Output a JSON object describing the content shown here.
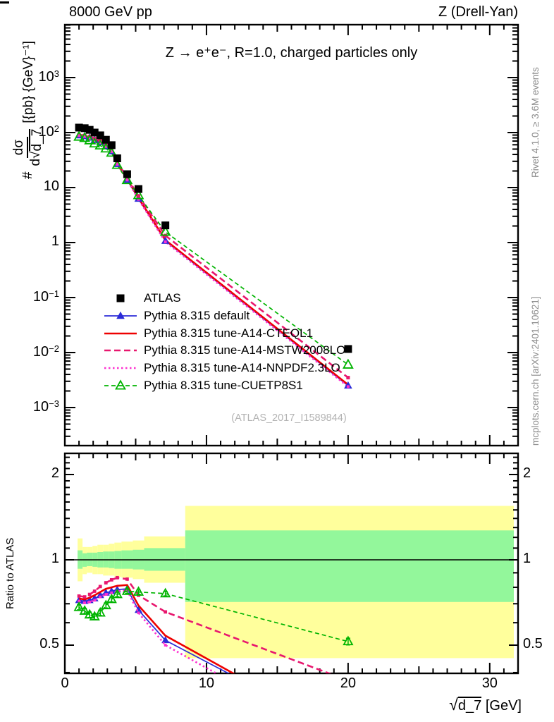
{
  "header": {
    "left": "8000 GeV pp",
    "right": "Z (Drell-Yan)"
  },
  "title": "Z → e⁺e⁻, R=1.0, charged particles only",
  "watermark": "(ATLAS_2017_I1589844)",
  "side_notes": {
    "top": "Rivet 4.1.0, ≥ 3.6M events",
    "bottom": "mcplots.cern.ch [arXiv:2401.10621]"
  },
  "axes": {
    "ratio_label": "Ratio to ATLAS",
    "x_label": {
      "sqrt": "√",
      "arg": "d_7",
      "units": " [GeV]"
    },
    "y_label": {
      "prefix": "#",
      "numerator": "dσ",
      "den_d": "d√",
      "den_arg": "d_7",
      "units": "[{pb} {GeV}⁻¹]"
    }
  },
  "chart_data": {
    "type": "line",
    "title": "Z → e⁺e⁻, R=1.0, charged particles only",
    "xlabel": "√d_7 [GeV]",
    "ylabel": "# dσ/d√d_7 [{pb} {GeV}⁻¹]",
    "ratio_ylabel": "Ratio to ATLAS",
    "xlim": [
      0,
      32
    ],
    "ylim_main": [
      0.0002,
      9000
    ],
    "ylim_ratio": [
      0.4,
      2.35
    ],
    "yscale_main": "log",
    "yscale_ratio": "log",
    "x_minor_step": 1,
    "x_ticks": [
      {
        "v": 0,
        "label": "0"
      },
      {
        "v": 10,
        "label": "10"
      },
      {
        "v": 20,
        "label": "20"
      },
      {
        "v": 30,
        "label": "30"
      }
    ],
    "y_ticks_main": [
      {
        "v": 1000,
        "base": "10",
        "exp": "3"
      },
      {
        "v": 100,
        "base": "10",
        "exp": "2"
      },
      {
        "v": 10,
        "base": "10",
        "exp": ""
      },
      {
        "v": 1,
        "base": "1",
        "exp": ""
      },
      {
        "v": 0.1,
        "base": "10",
        "exp": "−1"
      },
      {
        "v": 0.01,
        "base": "10",
        "exp": "−2"
      },
      {
        "v": 0.001,
        "base": "10",
        "exp": "−3"
      }
    ],
    "y_ticks_ratio": [
      {
        "v": 2,
        "label": "2"
      },
      {
        "v": 1,
        "label": "1"
      },
      {
        "v": 0.5,
        "label": "0.5"
      }
    ],
    "x": [
      1.0,
      1.4,
      1.75,
      2.1,
      2.5,
      2.9,
      3.3,
      3.7,
      4.4,
      5.2,
      7.1,
      20
    ],
    "series": [
      {
        "name": "ATLAS",
        "color": "#000000",
        "line": "none",
        "lw": 0,
        "dash": "",
        "marker": "square",
        "msize": 11,
        "values": [
          123,
          120,
          112,
          100,
          89,
          74,
          59,
          34,
          17.5,
          9.4,
          2.05,
          0.0116
        ],
        "ratio": null,
        "ratio_exit": null,
        "ratio_err": 0
      },
      {
        "name": "Pythia 8.315 default",
        "color": "#2b2bd8",
        "line": "solid",
        "lw": 1.7,
        "dash": "",
        "marker": "triangle",
        "msize": 10,
        "values": [
          88.6,
          85.8,
          80.6,
          73,
          66.8,
          56.6,
          45.7,
          26.7,
          13.8,
          6.25,
          1.07,
          0.0025
        ],
        "ratio": [
          0.72,
          0.715,
          0.72,
          0.73,
          0.75,
          0.765,
          0.775,
          0.785,
          0.79,
          0.665,
          0.52
        ],
        "ratio_exit": [
          12.3,
          0.38
        ],
        "ratio_err": 0
      },
      {
        "name": "Pythia 8.315 tune-A14-CTEQL1",
        "color": "#ee0000",
        "line": "solid",
        "lw": 2.6,
        "dash": "",
        "marker": "none",
        "msize": 0,
        "values": [
          89.8,
          87,
          82.3,
          75,
          68.5,
          58.5,
          47.2,
          27.5,
          14.3,
          6.49,
          1.11,
          0.0026
        ],
        "ratio": [
          0.73,
          0.725,
          0.735,
          0.75,
          0.77,
          0.79,
          0.8,
          0.81,
          0.815,
          0.69,
          0.54
        ],
        "ratio_exit": [
          12.6,
          0.38
        ],
        "ratio_err": 0
      },
      {
        "name": "Pythia 8.315 tune-A14-MSTW2008LO",
        "color": "#e8176e",
        "line": "dashed",
        "lw": 2.6,
        "dash": "9,5",
        "marker": "square",
        "msize": 5,
        "values": [
          91.6,
          88.8,
          84.6,
          77.5,
          71.6,
          61.4,
          50.2,
          29.4,
          15,
          7.05,
          1.34,
          0.0035
        ],
        "ratio": [
          0.745,
          0.74,
          0.755,
          0.775,
          0.805,
          0.83,
          0.85,
          0.865,
          0.855,
          0.75,
          0.655
        ],
        "ratio_exit": [
          19.7,
          0.38
        ],
        "ratio_err": 0
      },
      {
        "name": "Pythia 8.315 tune-A14-NNPDF2.3LO",
        "color": "#fd30d0",
        "line": "dotted",
        "lw": 2.6,
        "dash": "2.5,3.5",
        "marker": "square",
        "msize": 4,
        "values": [
          88,
          84.6,
          79.5,
          72,
          65.9,
          55.9,
          45.1,
          26.4,
          13.7,
          6.11,
          1.03,
          0.0024
        ],
        "ratio": [
          0.715,
          0.705,
          0.71,
          0.72,
          0.74,
          0.755,
          0.765,
          0.775,
          0.78,
          0.65,
          0.5
        ],
        "ratio_exit": [
          11.4,
          0.38
        ],
        "ratio_err": 0
      },
      {
        "name": "Pythia 8.315 tune-CUETP8S1",
        "color": "#00b400",
        "line": "dashed",
        "lw": 1.7,
        "dash": "6,4",
        "marker": "triangle-open",
        "msize": 11,
        "values": [
          83.6,
          79.2,
          71.7,
          63,
          57.9,
          51.1,
          42.8,
          25.7,
          13.6,
          7.24,
          1.56,
          0.006
        ],
        "ratio": [
          0.68,
          0.66,
          0.64,
          0.63,
          0.65,
          0.69,
          0.725,
          0.755,
          0.775,
          0.77,
          0.76,
          0.515
        ],
        "ratio_exit": null,
        "ratio_err": 0.014
      }
    ],
    "ratio_bands": {
      "colors": {
        "outer": "#ffff9c",
        "inner": "#93f79b"
      },
      "bins": [
        {
          "x0": 0.9,
          "x1": 1.25,
          "y_lo": 0.84,
          "y_hi": 1.19,
          "g_lo": 0.93,
          "g_hi": 1.08
        },
        {
          "x0": 1.25,
          "x1": 1.55,
          "y_lo": 0.89,
          "y_hi": 1.11,
          "g_lo": 0.945,
          "g_hi": 1.055
        },
        {
          "x0": 1.55,
          "x1": 1.95,
          "y_lo": 0.9,
          "y_hi": 1.11,
          "g_lo": 0.95,
          "g_hi": 1.06
        },
        {
          "x0": 1.95,
          "x1": 2.3,
          "y_lo": 0.89,
          "y_hi": 1.12,
          "g_lo": 0.945,
          "g_hi": 1.06
        },
        {
          "x0": 2.3,
          "x1": 2.7,
          "y_lo": 0.89,
          "y_hi": 1.13,
          "g_lo": 0.94,
          "g_hi": 1.065
        },
        {
          "x0": 2.7,
          "x1": 3.1,
          "y_lo": 0.88,
          "y_hi": 1.13,
          "g_lo": 0.94,
          "g_hi": 1.07
        },
        {
          "x0": 3.1,
          "x1": 3.5,
          "y_lo": 0.88,
          "y_hi": 1.14,
          "g_lo": 0.935,
          "g_hi": 1.07
        },
        {
          "x0": 3.5,
          "x1": 4.0,
          "y_lo": 0.87,
          "y_hi": 1.15,
          "g_lo": 0.93,
          "g_hi": 1.075
        },
        {
          "x0": 4.0,
          "x1": 4.8,
          "y_lo": 0.865,
          "y_hi": 1.16,
          "g_lo": 0.93,
          "g_hi": 1.08
        },
        {
          "x0": 4.8,
          "x1": 5.6,
          "y_lo": 0.855,
          "y_hi": 1.17,
          "g_lo": 0.925,
          "g_hi": 1.085
        },
        {
          "x0": 5.6,
          "x1": 8.5,
          "y_lo": 0.83,
          "y_hi": 1.21,
          "g_lo": 0.915,
          "g_hi": 1.1
        },
        {
          "x0": 8.5,
          "x1": 31.7,
          "y_lo": 0.45,
          "y_hi": 1.55,
          "g_lo": 0.71,
          "g_hi": 1.27
        }
      ]
    }
  }
}
